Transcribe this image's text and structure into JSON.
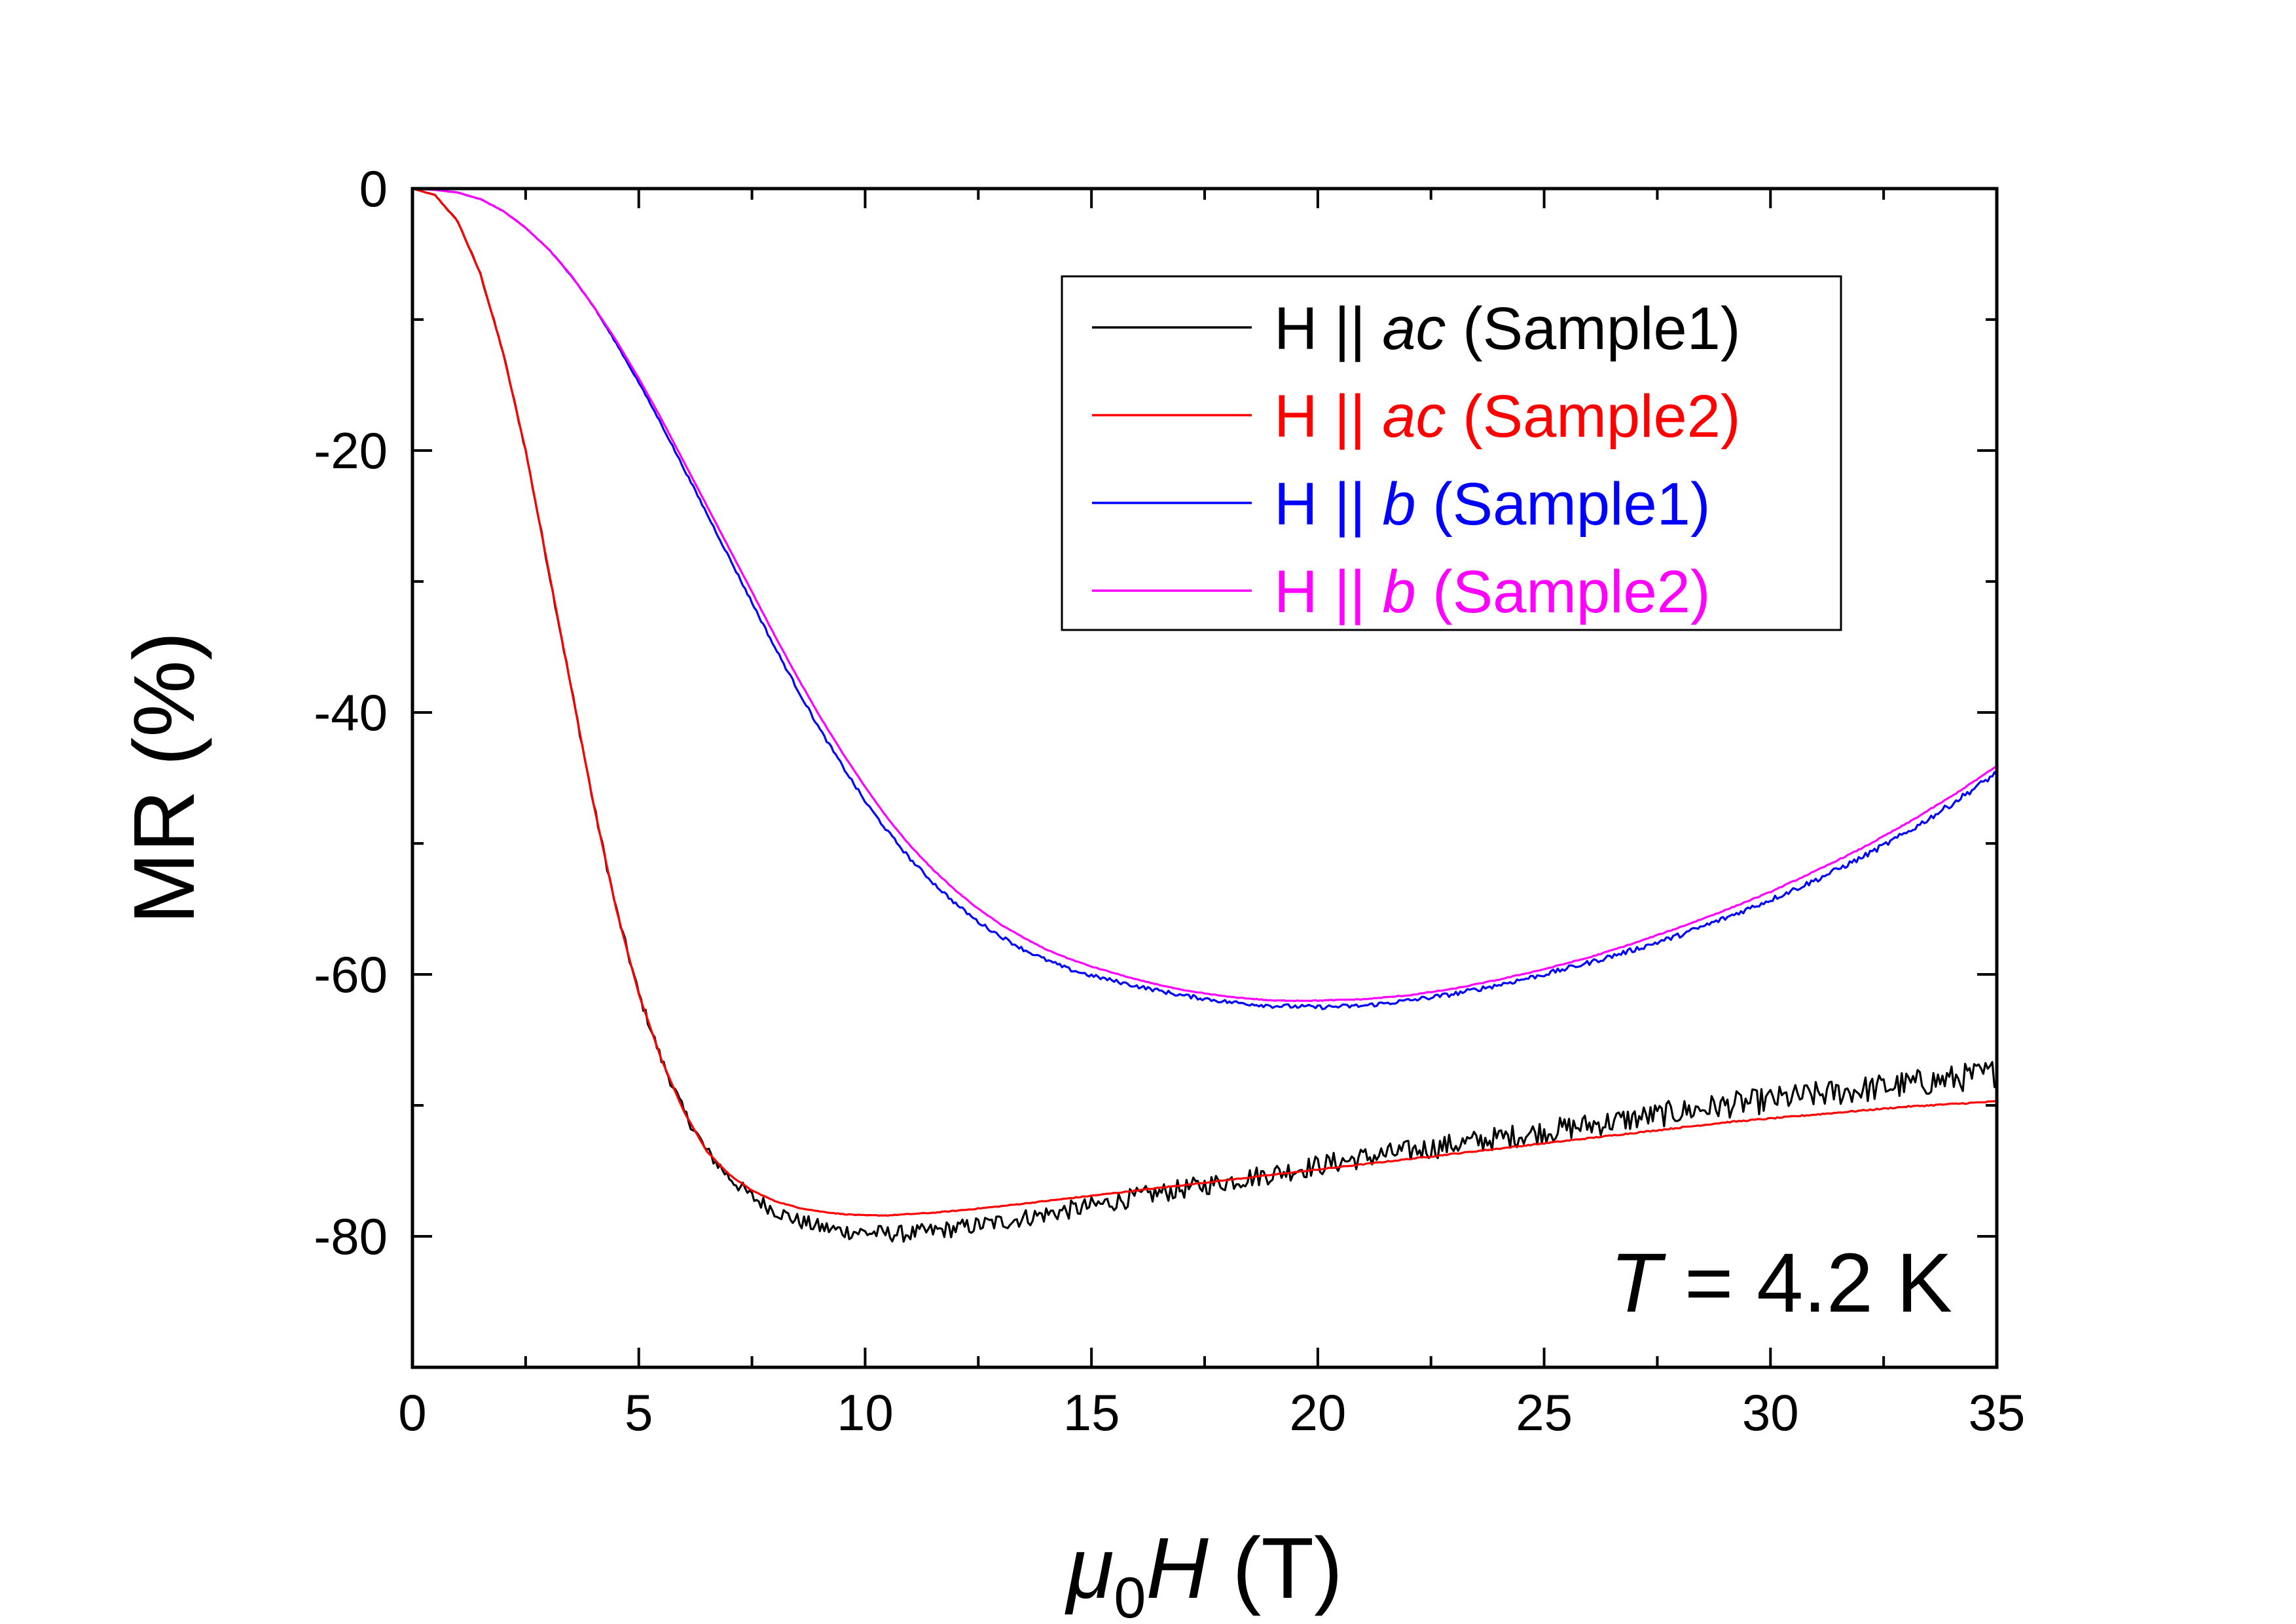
{
  "chart_data": {
    "type": "line",
    "title": "",
    "xlabel": {
      "symbol": "μ",
      "subscript": "0",
      "variable": "H",
      "unit": " (T)"
    },
    "ylabel": "MR (%)",
    "xlim": [
      0,
      35
    ],
    "ylim": [
      -90,
      0
    ],
    "x_ticks": [
      "0",
      "5",
      "10",
      "15",
      "20",
      "25",
      "30",
      "35"
    ],
    "x_tick_values": [
      0,
      5,
      10,
      15,
      20,
      25,
      30,
      35
    ],
    "y_ticks": [
      "0",
      "-20",
      "-40",
      "-60",
      "-80"
    ],
    "y_tick_values": [
      0,
      -20,
      -40,
      -60,
      -80
    ],
    "x_minor_step": 2.5,
    "y_minor_step": 10,
    "grid": false,
    "legend_position": "top-right",
    "annotation": {
      "italic": "T",
      "rest": " = 4.2 K"
    },
    "series": [
      {
        "name": "H || ac (Sample1)",
        "prefix": "H || ",
        "italic": "ac",
        "suffix": " (Sample1)",
        "color": "#000000",
        "noise": 1.1,
        "x": [
          0,
          0.5,
          1,
          1.5,
          2,
          2.5,
          3,
          3.5,
          4,
          4.5,
          5,
          5.5,
          6,
          6.5,
          7,
          7.5,
          8,
          8.5,
          9,
          9.5,
          10,
          10.5,
          11,
          11.5,
          12,
          13,
          14,
          15,
          16,
          17,
          18,
          19,
          20,
          21,
          22,
          23,
          24,
          25,
          26,
          27,
          28,
          29,
          30,
          31,
          32,
          33,
          34,
          35
        ],
        "y": [
          0,
          -0.5,
          -2.5,
          -6.5,
          -12.5,
          -20,
          -29,
          -38,
          -47,
          -55,
          -61.5,
          -66.5,
          -70.5,
          -73.5,
          -75.5,
          -77,
          -78,
          -78.8,
          -79.3,
          -79.6,
          -79.7,
          -79.8,
          -79.8,
          -79.6,
          -79.4,
          -78.9,
          -78.3,
          -77.7,
          -77,
          -76.4,
          -75.8,
          -75.2,
          -74.6,
          -74,
          -73.5,
          -73,
          -72.5,
          -72,
          -71.5,
          -71,
          -70.5,
          -70,
          -69.6,
          -69.2,
          -68.8,
          -68.4,
          -68,
          -67.5
        ]
      },
      {
        "name": "H || ac (Sample2)",
        "prefix": "H || ",
        "italic": "ac",
        "suffix": " (Sample2)",
        "color": "#ff0000",
        "noise": 0.05,
        "x": [
          0,
          0.5,
          1,
          1.5,
          2,
          2.5,
          3,
          3.5,
          4,
          4.5,
          5,
          5.5,
          6,
          6.5,
          7,
          7.5,
          8,
          8.5,
          9,
          9.5,
          10,
          10.5,
          11,
          11.5,
          12,
          13,
          14,
          15,
          16,
          17,
          18,
          19,
          20,
          21,
          22,
          23,
          24,
          25,
          26,
          27,
          28,
          29,
          30,
          31,
          32,
          33,
          34,
          35
        ],
        "y": [
          0,
          -0.5,
          -2.5,
          -6.5,
          -12.5,
          -20,
          -29,
          -38,
          -47,
          -55,
          -61.5,
          -66.5,
          -70.5,
          -73.5,
          -75.3,
          -76.5,
          -77.3,
          -77.8,
          -78.1,
          -78.3,
          -78.4,
          -78.4,
          -78.3,
          -78.2,
          -78.05,
          -77.7,
          -77.3,
          -76.9,
          -76.5,
          -76.1,
          -75.7,
          -75.3,
          -74.9,
          -74.5,
          -74.1,
          -73.7,
          -73.3,
          -72.9,
          -72.5,
          -72.1,
          -71.7,
          -71.3,
          -71,
          -70.7,
          -70.4,
          -70.1,
          -69.9,
          -69.7
        ]
      },
      {
        "name": "H || b (Sample1)",
        "prefix": "H || ",
        "italic": "b",
        "suffix": " (Sample1)",
        "color": "#0000ff",
        "noise": 0.22,
        "x": [
          0,
          0.5,
          1,
          1.5,
          2,
          2.5,
          3,
          3.5,
          4,
          4.5,
          5,
          5.5,
          6,
          6.5,
          7,
          7.5,
          8,
          8.5,
          9,
          9.5,
          10,
          10.5,
          11,
          11.5,
          12,
          12.5,
          13,
          13.5,
          14,
          14.5,
          15,
          16,
          17,
          18,
          19,
          20,
          21,
          22,
          23,
          24,
          25,
          26,
          27,
          28,
          29,
          30,
          31,
          32,
          33,
          34,
          35
        ],
        "y": [
          0,
          -0.1,
          -0.3,
          -0.8,
          -1.7,
          -3,
          -4.6,
          -6.6,
          -9,
          -11.8,
          -14.8,
          -18,
          -21.4,
          -24.8,
          -28.2,
          -31.6,
          -35,
          -38.2,
          -41.3,
          -44.1,
          -46.8,
          -49.1,
          -51.2,
          -53,
          -54.6,
          -56,
          -57.1,
          -58.1,
          -58.9,
          -59.6,
          -60.1,
          -60.9,
          -61.6,
          -62.1,
          -62.4,
          -62.5,
          -62.4,
          -62,
          -61.5,
          -60.8,
          -60,
          -59.1,
          -58.1,
          -57,
          -55.7,
          -54.3,
          -52.8,
          -51.1,
          -49.2,
          -47,
          -44.6
        ]
      },
      {
        "name": "H || b (Sample2)",
        "prefix": "H || ",
        "italic": "b",
        "suffix": " (Sample2)",
        "color": "#ff00ff",
        "noise": 0.04,
        "x": [
          0,
          0.5,
          1,
          1.5,
          2,
          2.5,
          3,
          3.5,
          4,
          4.5,
          5,
          5.5,
          6,
          6.5,
          7,
          7.5,
          8,
          8.5,
          9,
          9.5,
          10,
          10.5,
          11,
          11.5,
          12,
          12.5,
          13,
          13.5,
          14,
          14.5,
          15,
          16,
          17,
          18,
          19,
          20,
          21,
          22,
          23,
          24,
          25,
          26,
          27,
          28,
          29,
          30,
          31,
          32,
          33,
          34,
          35
        ],
        "y": [
          0,
          -0.1,
          -0.3,
          -0.8,
          -1.7,
          -3,
          -4.6,
          -6.6,
          -9,
          -11.6,
          -14.5,
          -17.6,
          -20.9,
          -24.2,
          -27.5,
          -30.8,
          -34.1,
          -37.3,
          -40.3,
          -43.1,
          -45.7,
          -48.1,
          -50.2,
          -52,
          -53.6,
          -55,
          -56.2,
          -57.2,
          -58.1,
          -58.8,
          -59.4,
          -60.4,
          -61.2,
          -61.7,
          -62,
          -62,
          -61.9,
          -61.6,
          -61.1,
          -60.4,
          -59.6,
          -58.7,
          -57.6,
          -56.4,
          -55.1,
          -53.7,
          -52.1,
          -50.4,
          -48.5,
          -46.4,
          -44.1
        ]
      }
    ]
  }
}
